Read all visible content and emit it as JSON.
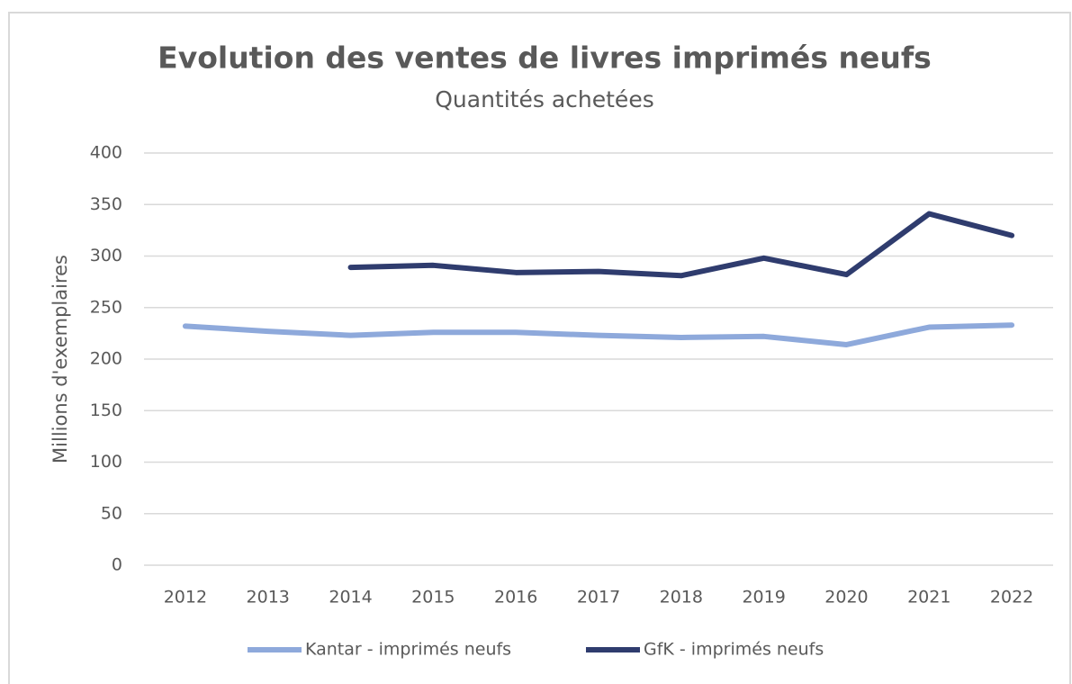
{
  "chart_data": {
    "type": "line",
    "title": "Evolution des ventes de livres imprimés neufs",
    "subtitle": "Quantités achetées",
    "y_label": "Millions d'exemplaires",
    "categories": [
      "2012",
      "2013",
      "2014",
      "2015",
      "2016",
      "2017",
      "2018",
      "2019",
      "2020",
      "2021",
      "2022"
    ],
    "series": [
      {
        "name": "Kantar - imprimés neufs",
        "color": "#8ea9db",
        "values": [
          232,
          227,
          223,
          226,
          226,
          223,
          221,
          222,
          214,
          231,
          233
        ]
      },
      {
        "name": "GfK - imprimés neufs",
        "color": "#2f3c6e",
        "values": [
          null,
          null,
          289,
          291,
          284,
          285,
          281,
          298,
          282,
          341,
          320
        ]
      }
    ],
    "ylim": [
      0,
      400
    ],
    "yticks": [
      0,
      50,
      100,
      150,
      200,
      250,
      300,
      350,
      400
    ],
    "grid": true,
    "legend": "bottom"
  }
}
